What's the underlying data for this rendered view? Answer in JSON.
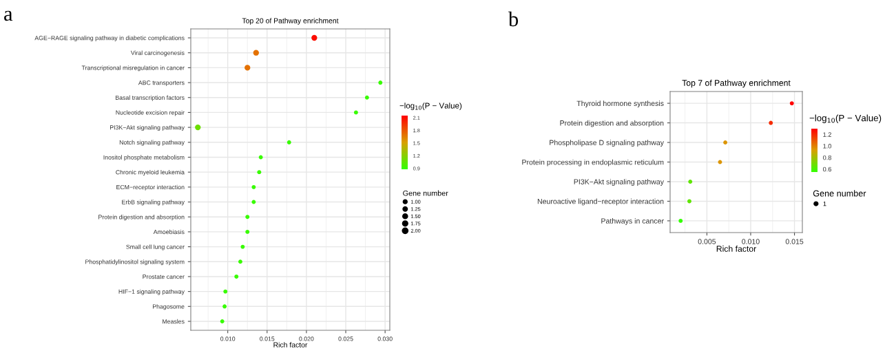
{
  "chart_data": [
    {
      "type": "scatter",
      "orientation": "horizontal",
      "title": "Top 20 of Pathway enrichment",
      "xlabel": "Rich factor",
      "categories": [
        "AGE−RAGE signaling pathway in diabetic complications",
        "Viral carcinogenesis",
        "Transcriptional misregulation in cancer",
        "ABC transporters",
        "Basal transcription factors",
        "Nucleotide excision repair",
        "PI3K−Akt signaling pathway",
        "Notch signaling pathway",
        "Inositol phosphate metabolism",
        "Chronic myeloid leukemia",
        "ECM−receptor interaction",
        "ErbB signaling pathway",
        "Protein digestion and absorption",
        "Amoebiasis",
        "Small cell lung cancer",
        "Phosphatidylinositol signaling system",
        "Prostate cancer",
        "HIF−1 signaling pathway",
        "Phagosome",
        "Measles"
      ],
      "series": [
        {
          "values": [
            0.021,
            0.0136,
            0.0125,
            0.0294,
            0.0277,
            0.0263,
            0.0062,
            0.0178,
            0.0142,
            0.014,
            0.0133,
            0.0133,
            0.0125,
            0.0125,
            0.0119,
            0.0116,
            0.0111,
            0.0097,
            0.0096,
            0.0093
          ],
          "sizes": [
            2,
            2,
            2,
            1,
            1,
            1,
            2,
            1,
            1,
            1,
            1,
            1,
            1,
            1,
            1,
            1,
            1,
            1,
            1,
            1
          ],
          "cvalues": [
            2.1,
            1.7,
            1.7,
            0.9,
            0.9,
            0.9,
            1.1,
            0.9,
            0.9,
            0.9,
            0.9,
            0.9,
            0.9,
            0.9,
            0.9,
            0.9,
            0.9,
            0.9,
            0.9,
            0.9
          ]
        }
      ],
      "xlim": [
        0.0053,
        0.0306
      ],
      "xticks": [
        {
          "value": 0.01,
          "label": "0.010"
        },
        {
          "value": 0.015,
          "label": "0.015"
        },
        {
          "value": 0.02,
          "label": "0.020"
        },
        {
          "value": 0.025,
          "label": "0.025"
        },
        {
          "value": 0.03,
          "label": "0.030"
        }
      ],
      "clabel": "−log$_{10}$(P − Value)",
      "clim": [
        0.88,
        2.15
      ],
      "cticks": [
        0.9,
        1.2,
        1.5,
        1.8,
        2.1
      ],
      "legend_title": "Gene number",
      "size_legend": [
        {
          "value": 1,
          "label": "1.00"
        },
        {
          "value": 1.25,
          "label": "1.25"
        },
        {
          "value": 1.5,
          "label": "1.50"
        },
        {
          "value": 1.75,
          "label": "1.75"
        },
        {
          "value": 2,
          "label": "2.00"
        }
      ],
      "grid": true,
      "annotations": [
        "a"
      ]
    },
    {
      "type": "scatter",
      "orientation": "horizontal",
      "title": "Top 7 of Pathway enrichment",
      "xlabel": "Rich factor",
      "categories": [
        "Thyroid hormone synthesis",
        "Protein digestion and absorption",
        "Phospholipase D signaling pathway",
        "Protein processing in endoplasmic reticulum",
        "PI3K−Akt signaling pathway",
        "Neuroactive ligand−receptor interaction",
        "Pathways in cancer"
      ],
      "series": [
        {
          "values": [
            0.0147,
            0.0123,
            0.0071,
            0.0065,
            0.0031,
            0.003,
            0.002
          ],
          "sizes": [
            1,
            1,
            1,
            1,
            1,
            1,
            1
          ],
          "cvalues": [
            1.3,
            1.2,
            0.95,
            0.95,
            0.65,
            0.65,
            0.55
          ]
        }
      ],
      "xlim": [
        0.0008,
        0.0159
      ],
      "xticks": [
        {
          "value": 0.005,
          "label": "0.005"
        },
        {
          "value": 0.01,
          "label": "0.010"
        },
        {
          "value": 0.015,
          "label": "0.015"
        }
      ],
      "clabel": "−log$_{10}$(P − Value)",
      "clim": [
        0.55,
        1.3
      ],
      "cticks": [
        {
          "value": 0.6,
          "label": "0.6"
        },
        {
          "value": 0.8,
          "label": "0.8"
        },
        {
          "value": 1.0,
          "label": "1.0"
        },
        {
          "value": 1.2,
          "label": "1.2"
        }
      ],
      "legend_title": "Gene number",
      "size_legend": [
        {
          "value": 1,
          "label": "1"
        }
      ],
      "grid": true,
      "annotations": [
        "b"
      ]
    }
  ]
}
